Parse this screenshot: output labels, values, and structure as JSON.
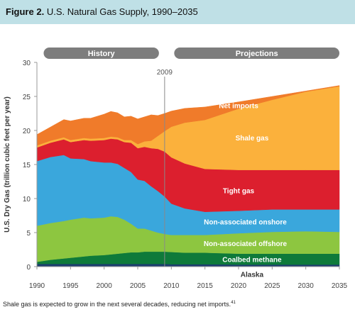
{
  "figure": {
    "label": "Figure 2.",
    "title": "U.S. Natural Gas Supply, 1990–2035"
  },
  "caption": {
    "text": "Shale gas is expected to grow in the next several decades, reducing net imports.",
    "note": "41"
  },
  "chart_data": {
    "type": "area",
    "stacked": true,
    "ylabel": "U.S. Dry Gas (trillion cubic feet per year)",
    "xlabel": "",
    "xlim": [
      1990,
      2035
    ],
    "ylim": [
      0,
      30
    ],
    "x_ticks": [
      1990,
      1995,
      2000,
      2005,
      2010,
      2015,
      2020,
      2025,
      2030,
      2035
    ],
    "y_ticks": [
      0,
      5,
      10,
      15,
      20,
      25,
      30
    ],
    "grid": false,
    "history_label": "History",
    "projections_label": "Projections",
    "divider_year": 2009,
    "divider_label": "2009",
    "x": [
      1990,
      1992,
      1994,
      1995,
      1997,
      1998,
      2000,
      2001,
      2002,
      2003,
      2004,
      2005,
      2006,
      2007,
      2008,
      2009,
      2010,
      2012,
      2015,
      2020,
      2025,
      2030,
      2035
    ],
    "series": [
      {
        "name": "Alaska",
        "color": "#1c3d6e",
        "values": [
          0.4,
          0.4,
          0.4,
          0.4,
          0.4,
          0.4,
          0.4,
          0.4,
          0.4,
          0.4,
          0.4,
          0.4,
          0.4,
          0.4,
          0.4,
          0.4,
          0.35,
          0.35,
          0.35,
          0.3,
          0.3,
          0.3,
          0.3
        ]
      },
      {
        "name": "Coalbed methane",
        "color": "#0e7a3a",
        "values": [
          0.3,
          0.6,
          0.8,
          0.9,
          1.1,
          1.2,
          1.3,
          1.4,
          1.5,
          1.6,
          1.7,
          1.7,
          1.8,
          1.8,
          1.8,
          1.8,
          1.8,
          1.7,
          1.7,
          1.6,
          1.6,
          1.6,
          1.6
        ]
      },
      {
        "name": "Non-associated offshore",
        "color": "#8dc640",
        "values": [
          5.3,
          5.4,
          5.5,
          5.6,
          5.7,
          5.5,
          5.5,
          5.6,
          5.4,
          4.9,
          4.2,
          3.5,
          3.4,
          3.1,
          2.8,
          2.6,
          2.5,
          2.6,
          2.6,
          3.0,
          3.2,
          3.3,
          3.2
        ]
      },
      {
        "name": "Non-associated onshore",
        "color": "#3aa7dc",
        "values": [
          9.5,
          9.7,
          9.7,
          9.0,
          8.6,
          8.4,
          8.1,
          7.9,
          7.8,
          7.6,
          7.6,
          7.2,
          7.0,
          6.5,
          6.1,
          5.5,
          4.6,
          3.9,
          3.4,
          3.3,
          3.3,
          3.2,
          3.3
        ]
      },
      {
        "name": "Tight gas",
        "color": "#dc1f2e",
        "values": [
          2.0,
          2.1,
          2.3,
          2.4,
          2.8,
          3.0,
          3.3,
          3.5,
          3.6,
          3.8,
          4.3,
          4.6,
          5.0,
          5.6,
          6.2,
          6.6,
          6.8,
          6.6,
          6.3,
          6.0,
          5.8,
          5.8,
          5.8
        ]
      },
      {
        "name": "Shale gas",
        "color": "#fbb13c",
        "values": [
          0.3,
          0.3,
          0.3,
          0.3,
          0.3,
          0.3,
          0.3,
          0.3,
          0.3,
          0.3,
          0.4,
          0.6,
          0.8,
          1.1,
          1.9,
          3.0,
          4.5,
          6.0,
          7.2,
          9.0,
          10.3,
          11.5,
          12.3
        ]
      },
      {
        "name": "Net imports",
        "color": "#f07b2a",
        "values": [
          1.6,
          2.0,
          2.6,
          2.8,
          2.9,
          3.0,
          3.5,
          3.7,
          3.6,
          3.4,
          3.5,
          3.7,
          3.6,
          3.8,
          3.0,
          2.6,
          2.3,
          2.1,
          1.9,
          1.0,
          0.5,
          0.1,
          0.1
        ]
      }
    ]
  }
}
